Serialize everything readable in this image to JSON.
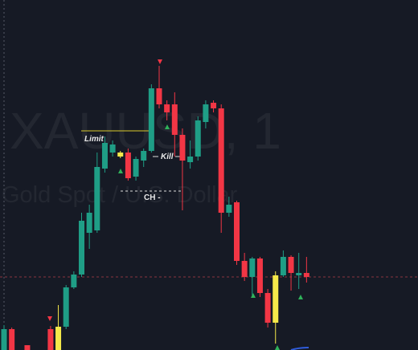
{
  "chart_data": {
    "type": "candlestick",
    "watermark": "XAUUSD, 1",
    "watermark_subtitle": "Gold Spot / U.S. Dollar",
    "annotations": {
      "limit": "Limit",
      "kill": "Kill",
      "ch": "CH -"
    },
    "ylim": [
      0,
      436
    ],
    "open": [
      0,
      26,
      null,
      6,
      null,
      null,
      26,
      0,
      29,
      78,
      94,
      146,
      149,
      226,
      246,
      241,
      246,
      216,
      236,
      248,
      326,
      306,
      306,
      268,
      234,
      241,
      284,
      308,
      301,
      171,
      184,
      111,
      91,
      114,
      71,
      34,
      93,
      116,
      93,
      96
    ],
    "high": [
      31,
      28,
      null,
      6,
      null,
      null,
      30,
      56,
      81,
      98,
      171,
      181,
      246,
      266,
      261,
      248,
      251,
      241,
      251,
      331,
      354,
      311,
      321,
      276,
      261,
      291,
      311,
      311,
      306,
      191,
      186,
      121,
      116,
      116,
      76,
      98,
      124,
      118,
      121,
      116
    ],
    "low": [
      0,
      0,
      null,
      0,
      null,
      null,
      0,
      0,
      26,
      76,
      91,
      126,
      146,
      221,
      241,
      239,
      211,
      211,
      228,
      246,
      301,
      286,
      241,
      174,
      226,
      236,
      276,
      296,
      146,
      166,
      106,
      86,
      68,
      66,
      28,
      8,
      91,
      74,
      76,
      84
    ],
    "close": [
      26,
      0,
      null,
      0,
      null,
      null,
      0,
      29,
      78,
      94,
      161,
      171,
      228,
      258,
      256,
      246,
      214,
      238,
      248,
      326,
      306,
      296,
      268,
      236,
      241,
      286,
      306,
      301,
      171,
      181,
      111,
      91,
      114,
      71,
      34,
      93,
      116,
      96,
      96,
      91
    ],
    "colors": [
      "#1f9e86",
      "#f23645",
      null,
      "#f23645",
      null,
      null,
      "#f23645",
      "#f5e94a",
      "#1f9e86",
      "#1f9e86",
      "#1f9e86",
      "#1f9e86",
      "#1f9e86",
      "#1f9e86",
      "#1f9e86",
      "#f5e94a",
      "#f23645",
      "#1f9e86",
      "#1f9e86",
      "#1f9e86",
      "#f23645",
      "#f23645",
      "#f23645",
      "#f23645",
      "#1f9e86",
      "#1f9e86",
      "#1f9e86",
      "#f23645",
      "#f23645",
      "#1f9e86",
      "#f23645",
      "#f23645",
      "#1f9e86",
      "#f23645",
      "#f23645",
      "#f5e94a",
      "#1f9e86",
      "#f23645",
      "#1f9e86",
      "#f23645"
    ]
  }
}
